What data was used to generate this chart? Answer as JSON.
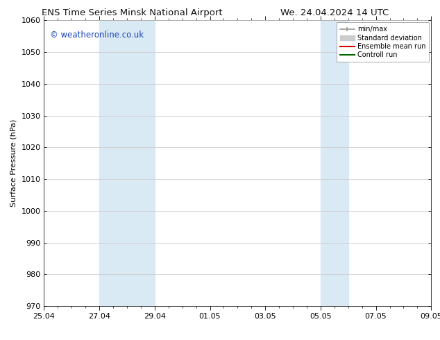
{
  "title_left": "ENS Time Series Minsk National Airport",
  "title_right": "We. 24.04.2024 14 UTC",
  "ylabel": "Surface Pressure (hPa)",
  "ylim": [
    970,
    1060
  ],
  "yticks": [
    970,
    980,
    990,
    1000,
    1010,
    1020,
    1030,
    1040,
    1050,
    1060
  ],
  "xtick_labels": [
    "25.04",
    "27.04",
    "29.04",
    "01.05",
    "03.05",
    "05.05",
    "07.05",
    "09.05"
  ],
  "xtick_positions": [
    0,
    2,
    4,
    6,
    8,
    10,
    12,
    14
  ],
  "shade_bands": [
    {
      "x_start": 2,
      "x_end": 4
    },
    {
      "x_start": 10,
      "x_end": 11
    }
  ],
  "shade_color": "#daeaf5",
  "copyright_text": "© weatheronline.co.uk",
  "copyright_color": "#1a44bb",
  "legend_items": [
    {
      "label": "min/max",
      "color": "#aaaaaa",
      "lw": 1.5
    },
    {
      "label": "Standard deviation",
      "color": "#cccccc",
      "lw": 8
    },
    {
      "label": "Ensemble mean run",
      "color": "#cc0000",
      "lw": 1.5
    },
    {
      "label": "Controll run",
      "color": "#006600",
      "lw": 1.5
    }
  ],
  "bg_color": "#ffffff",
  "grid_color": "#cccccc",
  "x_total": 14,
  "title_fontsize": 9.5,
  "axis_label_fontsize": 8,
  "tick_fontsize": 8,
  "legend_fontsize": 7,
  "copyright_fontsize": 8.5
}
